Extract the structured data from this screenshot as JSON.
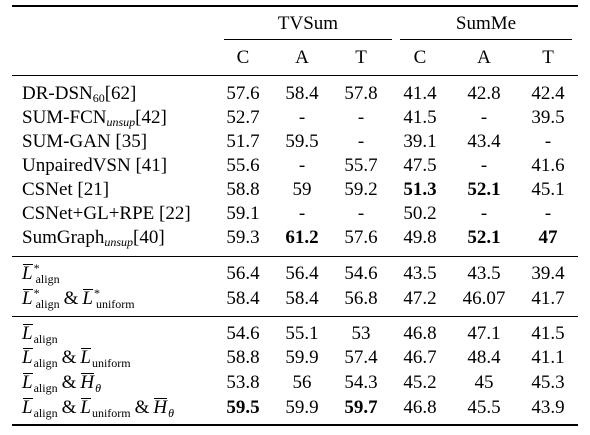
{
  "table": {
    "groups": [
      "TVSum",
      "SumMe"
    ],
    "columns": [
      "C",
      "A",
      "T",
      "C",
      "A",
      "T"
    ],
    "methods": [
      {
        "label_main": "DR-DSN",
        "label_sub": "60",
        "label_ref": "[62]",
        "values": [
          "57.6",
          "58.4",
          "57.8",
          "41.4",
          "42.8",
          "42.4"
        ],
        "bold": []
      },
      {
        "label_main": "SUM-FCN",
        "label_sub": "unsup",
        "label_ref": "[42]",
        "values": [
          "52.7",
          "-",
          "-",
          "41.5",
          "-",
          "39.5"
        ],
        "bold": []
      },
      {
        "label_main": "SUM-GAN [35]",
        "label_sub": "",
        "label_ref": "",
        "values": [
          "51.7",
          "59.5",
          "-",
          "39.1",
          "43.4",
          "-"
        ],
        "bold": []
      },
      {
        "label_main": "UnpairedVSN [41]",
        "label_sub": "",
        "label_ref": "",
        "values": [
          "55.6",
          "-",
          "55.7",
          "47.5",
          "-",
          "41.6"
        ],
        "bold": []
      },
      {
        "label_main": "CSNet [21]",
        "label_sub": "",
        "label_ref": "",
        "values": [
          "58.8",
          "59",
          "59.2",
          "51.3",
          "52.1",
          "45.1"
        ],
        "bold": [
          3,
          4
        ]
      },
      {
        "label_main": "CSNet+GL+RPE [22]",
        "label_sub": "",
        "label_ref": "",
        "values": [
          "59.1",
          "-",
          "-",
          "50.2",
          "-",
          "-"
        ],
        "bold": []
      },
      {
        "label_main": "SumGraph",
        "label_sub": "unsup",
        "label_ref": "[40]",
        "values": [
          "59.3",
          "61.2",
          "57.6",
          "49.8",
          "52.1",
          "47"
        ],
        "bold": [
          1,
          4,
          5
        ]
      }
    ],
    "ablation_star": [
      {
        "values": [
          "56.4",
          "56.4",
          "54.6",
          "43.5",
          "43.5",
          "39.4"
        ],
        "bold": []
      },
      {
        "values": [
          "58.4",
          "58.4",
          "56.8",
          "47.2",
          "46.07",
          "41.7"
        ],
        "bold": []
      }
    ],
    "ablation": [
      {
        "values": [
          "54.6",
          "55.1",
          "53",
          "46.8",
          "47.1",
          "41.5"
        ],
        "bold": []
      },
      {
        "values": [
          "58.8",
          "59.9",
          "57.4",
          "46.7",
          "48.4",
          "41.1"
        ],
        "bold": []
      },
      {
        "values": [
          "53.8",
          "56",
          "54.3",
          "45.2",
          "45",
          "45.3"
        ],
        "bold": []
      },
      {
        "values": [
          "59.5",
          "59.9",
          "59.7",
          "46.8",
          "45.5",
          "43.9"
        ],
        "bold": [
          0,
          2
        ]
      }
    ],
    "symbols": {
      "L": "L",
      "H": "H",
      "star": "*",
      "amp": "&",
      "align": "align",
      "uniform": "uniform",
      "theta": "θ"
    }
  }
}
